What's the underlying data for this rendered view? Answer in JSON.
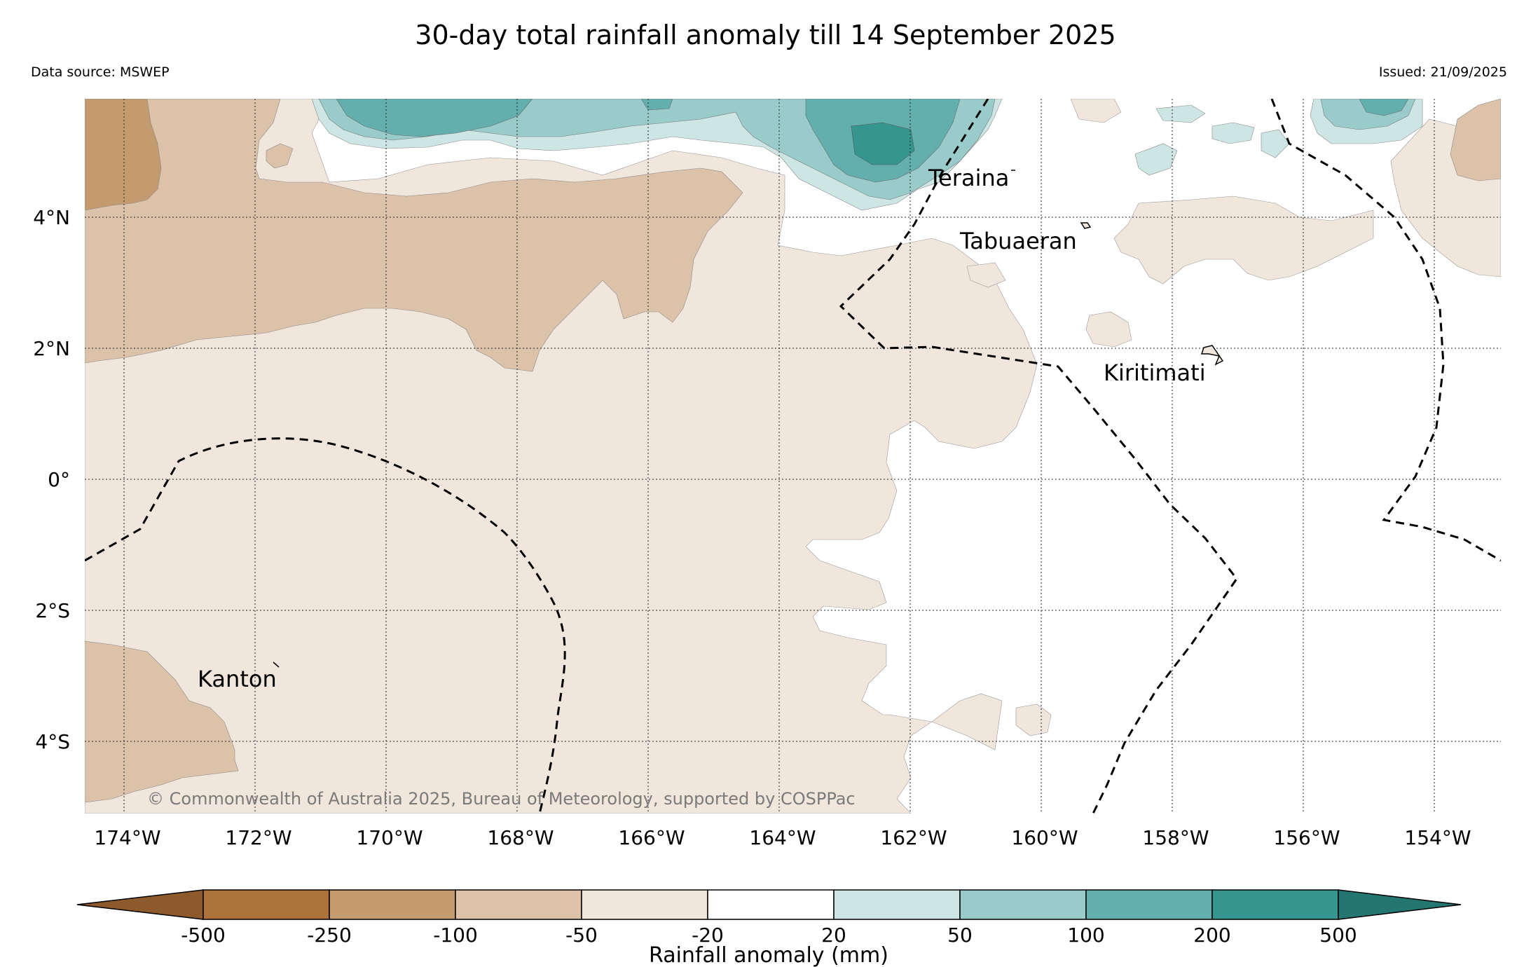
{
  "title": "30-day total rainfall anomaly till 14 September 2025",
  "data_source": "Data source: MSWEP",
  "issued": "Issued: 21/09/2025",
  "copyright": "© Commonwealth of Australia 2025, Bureau of Meteorology, supported by COSPPac",
  "lat_labels": [
    "4°N",
    "2°N",
    "0°",
    "2°S",
    "4°S"
  ],
  "lon_labels": [
    "174°W",
    "172°W",
    "170°W",
    "168°W",
    "166°W",
    "164°W",
    "162°W",
    "160°W",
    "158°W",
    "156°W",
    "154°W"
  ],
  "places": [
    "Teraina",
    "Tabuaeran",
    "Kiritimati",
    "Kanton"
  ],
  "legend": {
    "title": "Rainfall anomaly (mm)",
    "ticks": [
      "-500",
      "-250",
      "-100",
      "-50",
      "-20",
      "20",
      "50",
      "100",
      "200",
      "500"
    ],
    "colors": [
      "#8c5a2b",
      "#ad733a",
      "#c49a6f",
      "#dcc2a8",
      "#f0e6dc",
      "#ffffff",
      "#cde6e4",
      "#98cbc9",
      "#62afae",
      "#35968f",
      "#247670"
    ]
  },
  "colors": {
    "dry_100": "#c49a6f",
    "dry_50": "#dcc2a8",
    "dry_20": "#f0e6dc",
    "wet_20": "#cde6e4",
    "wet_50": "#98cbc9",
    "wet_100": "#62afae",
    "wet_200": "#35968f"
  }
}
